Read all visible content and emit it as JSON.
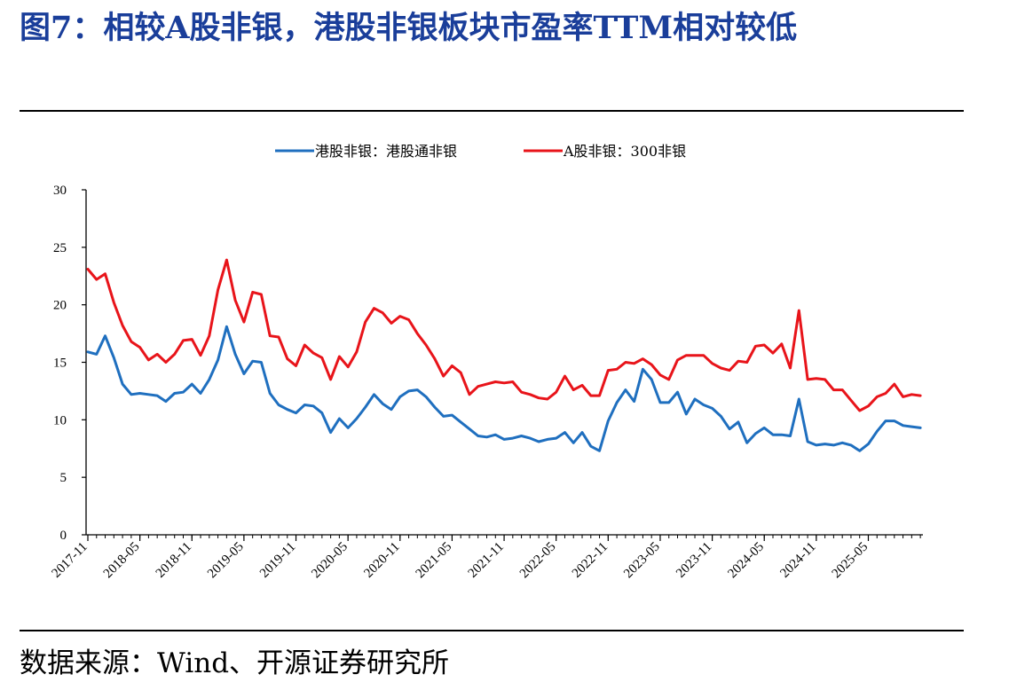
{
  "figure": {
    "title": "图7：相较A股非银，港股非银板块市盈率TTM相对较低",
    "source": "数据来源：Wind、开源证券研究所"
  },
  "chart_data": {
    "type": "line",
    "title": "",
    "xlabel": "",
    "ylabel": "",
    "ylim": [
      0,
      30
    ],
    "yticks": [
      0,
      5,
      10,
      15,
      20,
      25,
      30
    ],
    "grid": false,
    "legend_position": "top-center",
    "x_tick_labels": [
      "2017-11",
      "2018-05",
      "2018-11",
      "2019-05",
      "2019-11",
      "2020-05",
      "2020-11",
      "2021-05",
      "2021-11",
      "2022-05",
      "2022-11",
      "2023-05",
      "2023-11",
      "2024-05",
      "2024-11",
      "2025-05"
    ],
    "x": [
      "2017-11",
      "2017-12",
      "2018-01",
      "2018-02",
      "2018-03",
      "2018-04",
      "2018-05",
      "2018-06",
      "2018-07",
      "2018-08",
      "2018-09",
      "2018-10",
      "2018-11",
      "2018-12",
      "2019-01",
      "2019-02",
      "2019-03",
      "2019-04",
      "2019-05",
      "2019-06",
      "2019-07",
      "2019-08",
      "2019-09",
      "2019-10",
      "2019-11",
      "2019-12",
      "2020-01",
      "2020-02",
      "2020-03",
      "2020-04",
      "2020-05",
      "2020-06",
      "2020-07",
      "2020-08",
      "2020-09",
      "2020-10",
      "2020-11",
      "2020-12",
      "2021-01",
      "2021-02",
      "2021-03",
      "2021-04",
      "2021-05",
      "2021-06",
      "2021-07",
      "2021-08",
      "2021-09",
      "2021-10",
      "2021-11",
      "2021-12",
      "2022-01",
      "2022-02",
      "2022-03",
      "2022-04",
      "2022-05",
      "2022-06",
      "2022-07",
      "2022-08",
      "2022-09",
      "2022-10",
      "2022-11",
      "2022-12",
      "2023-01",
      "2023-02",
      "2023-03",
      "2023-04",
      "2023-05",
      "2023-06",
      "2023-07",
      "2023-08",
      "2023-09",
      "2023-10",
      "2023-11",
      "2023-12",
      "2024-01",
      "2024-02",
      "2024-03",
      "2024-04",
      "2024-05",
      "2024-06",
      "2024-07",
      "2024-08",
      "2024-09",
      "2024-10",
      "2024-11",
      "2024-12",
      "2025-01",
      "2025-02",
      "2025-03",
      "2025-04",
      "2025-05",
      "2025-06",
      "2025-07",
      "2025-08",
      "2025-09",
      "2025-10",
      "2025-11"
    ],
    "series": [
      {
        "name": "港股非银：港股通非银",
        "color": "#1f6fbf",
        "values": [
          15.9,
          15.7,
          17.3,
          15.4,
          13.1,
          12.2,
          12.3,
          12.2,
          12.1,
          11.6,
          12.3,
          12.4,
          13.1,
          12.3,
          13.5,
          15.2,
          18.1,
          15.7,
          14.0,
          15.1,
          15.0,
          12.3,
          11.3,
          10.9,
          10.6,
          11.3,
          11.2,
          10.6,
          8.9,
          10.1,
          9.3,
          10.1,
          11.1,
          12.2,
          11.4,
          10.9,
          12.0,
          12.5,
          12.6,
          12.0,
          11.1,
          10.3,
          10.4,
          9.8,
          9.2,
          8.6,
          8.5,
          8.7,
          8.3,
          8.4,
          8.6,
          8.4,
          8.1,
          8.3,
          8.4,
          8.9,
          8.0,
          8.9,
          7.7,
          7.3,
          9.9,
          11.5,
          12.6,
          11.6,
          14.4,
          13.5,
          11.5,
          11.5,
          12.4,
          10.5,
          11.8,
          11.3,
          11.0,
          10.3,
          9.2,
          9.8,
          8.0,
          8.8,
          9.3,
          8.7,
          8.7,
          8.6,
          11.8,
          8.1,
          7.8,
          7.9,
          7.8,
          8.0,
          7.8,
          7.3,
          7.9,
          9.0,
          9.9,
          9.9,
          9.5,
          9.4,
          9.3
        ]
      },
      {
        "name": "A股非银：300非银",
        "color": "#e8141a",
        "values": [
          23.1,
          22.2,
          22.7,
          20.2,
          18.2,
          16.8,
          16.3,
          15.2,
          15.7,
          15.0,
          15.7,
          16.9,
          17.0,
          15.6,
          17.3,
          21.3,
          23.9,
          20.4,
          18.5,
          21.1,
          20.9,
          17.3,
          17.2,
          15.3,
          14.7,
          16.5,
          15.8,
          15.4,
          13.5,
          15.5,
          14.6,
          15.9,
          18.5,
          19.7,
          19.3,
          18.4,
          19.0,
          18.7,
          17.5,
          16.5,
          15.3,
          13.8,
          14.7,
          14.1,
          12.2,
          12.9,
          13.1,
          13.3,
          13.2,
          13.3,
          12.4,
          12.2,
          11.9,
          11.8,
          12.4,
          13.8,
          12.6,
          13.0,
          12.1,
          12.1,
          14.3,
          14.4,
          15.0,
          14.9,
          15.3,
          14.8,
          13.9,
          13.5,
          15.2,
          15.6,
          15.6,
          15.6,
          14.9,
          14.5,
          14.3,
          15.1,
          15.0,
          16.4,
          16.5,
          15.8,
          16.6,
          14.5,
          19.5,
          13.5,
          13.6,
          13.5,
          12.6,
          12.6,
          11.7,
          10.8,
          11.2,
          12.0,
          12.3,
          13.1,
          12.0,
          12.2,
          12.1
        ]
      }
    ]
  }
}
